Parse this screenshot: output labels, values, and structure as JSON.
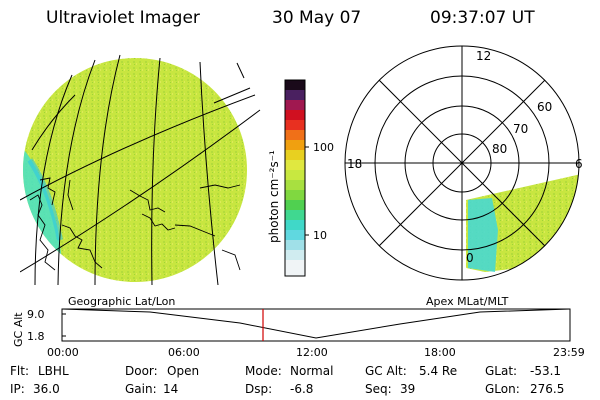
{
  "header": {
    "instrument": "Ultraviolet Imager",
    "date": "30 May 07",
    "time": "09:37:07 UT"
  },
  "colorbar": {
    "unit_label": "photon cm⁻²s⁻¹",
    "ticks": [
      "100",
      "10"
    ],
    "scale": "log"
  },
  "left_map": {
    "projection_label": "Geographic Lat/Lon"
  },
  "polar_map": {
    "projection_label": "Apex MLat/MLT",
    "mlt_labels": [
      "12",
      "18",
      "6",
      "0"
    ],
    "lat_labels": [
      "60",
      "70",
      "80"
    ]
  },
  "timeline": {
    "ylabel": "GC Alt",
    "y_ticks": [
      "9.0",
      "1.8"
    ],
    "x_ticks": [
      "00:00",
      "06:00",
      "12:00",
      "18:00",
      "23:59"
    ],
    "current_time": "09:37:07"
  },
  "status": {
    "flt_label": "Flt:",
    "flt_value": "LBHL",
    "ip_label": "IP:",
    "ip_value": "36.0",
    "door_label": "Door:",
    "door_value": "Open",
    "gain_label": "Gain:",
    "gain_value": "14",
    "mode_label": "Mode:",
    "mode_value": "Normal",
    "dsp_label": "Dsp:",
    "dsp_value": "-6.8",
    "gcalt_label": "GC Alt:",
    "gcalt_value": "5.4 Re",
    "seq_label": "Seq:",
    "seq_value": "39",
    "glat_label": "GLat:",
    "glat_value": "-53.1",
    "glon_label": "GLon:",
    "glon_value": "276.5"
  },
  "colors": {
    "image_fill": "#c8e640",
    "cyan_band": "#40e0d0",
    "cursor": "#d00000"
  }
}
